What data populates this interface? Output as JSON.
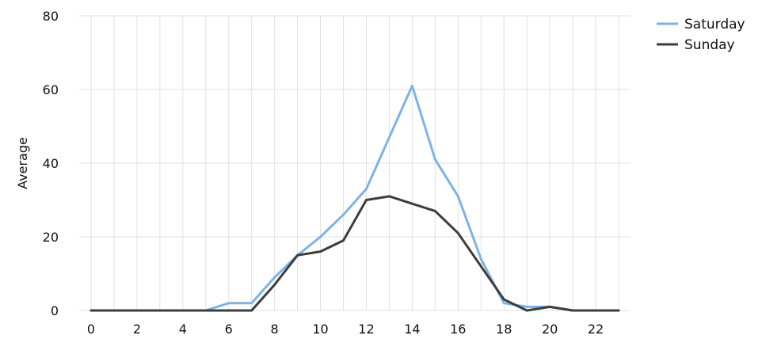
{
  "chart_data": {
    "type": "line",
    "title": "",
    "xlabel": "",
    "ylabel": "Average",
    "xlim": [
      0,
      23
    ],
    "ylim": [
      0,
      80
    ],
    "x_ticks": [
      0,
      2,
      4,
      6,
      8,
      10,
      12,
      14,
      16,
      18,
      20,
      22
    ],
    "y_ticks": [
      0,
      20,
      40,
      60,
      80
    ],
    "grid": true,
    "legend_position": "top-right",
    "x": [
      0,
      1,
      2,
      3,
      4,
      5,
      6,
      7,
      8,
      9,
      10,
      11,
      12,
      13,
      14,
      15,
      16,
      17,
      18,
      19,
      20,
      21,
      22,
      23
    ],
    "series": [
      {
        "name": "Saturday",
        "color": "#7eb3e6",
        "values": [
          0,
          0,
          0,
          0,
          0,
          0,
          2,
          2,
          9,
          15,
          20,
          26,
          33,
          47,
          61,
          41,
          31,
          14,
          2,
          1,
          1,
          0,
          0,
          0
        ]
      },
      {
        "name": "Sunday",
        "color": "#3d3d3d",
        "values": [
          0,
          0,
          0,
          0,
          0,
          0,
          0,
          0,
          7,
          15,
          16,
          19,
          30,
          31,
          29,
          27,
          21,
          12,
          3,
          0,
          1,
          0,
          0,
          0
        ]
      }
    ]
  }
}
